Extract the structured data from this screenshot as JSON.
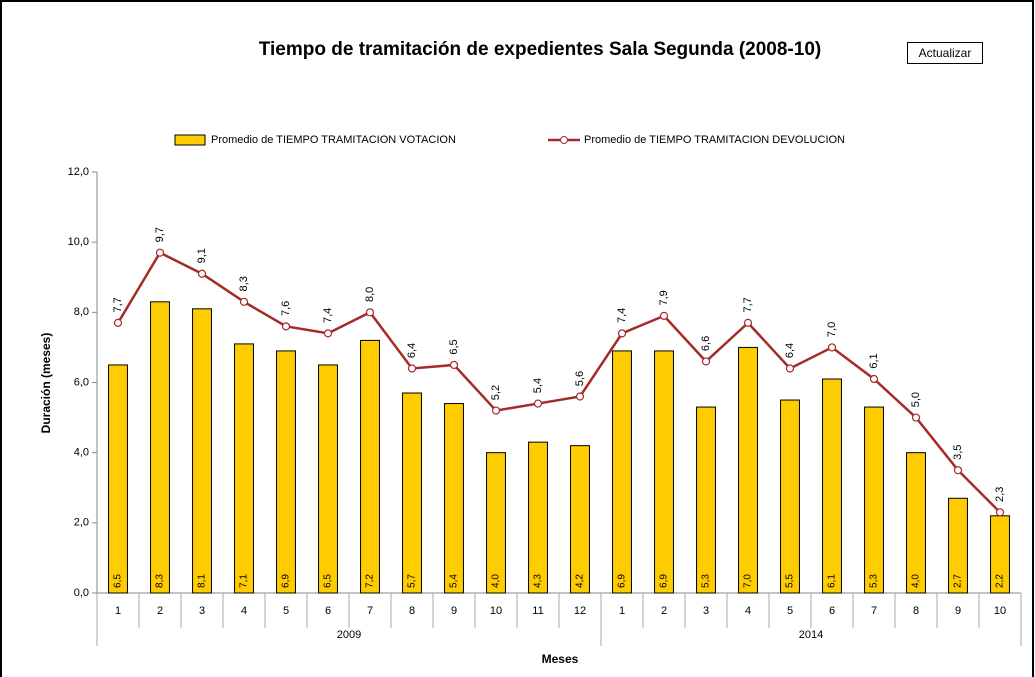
{
  "button": "Actualizar",
  "chart_data": {
    "type": "bar-line",
    "title": "Tiempo de tramitación de expedientes Sala Segunda (2008-10)",
    "y_label": "Duración (meses)",
    "x_label": "Meses",
    "groups": [
      {
        "name": "2009",
        "categories": [
          "1",
          "2",
          "3",
          "4",
          "5",
          "6",
          "7",
          "8",
          "9",
          "10",
          "11",
          "12"
        ]
      },
      {
        "name": "2014",
        "categories": [
          "1",
          "2",
          "3",
          "4",
          "5",
          "6",
          "7",
          "8",
          "9",
          "10"
        ]
      }
    ],
    "ylim": [
      0,
      12
    ],
    "yticks": [
      {
        "value": 0,
        "label": "0,0"
      },
      {
        "value": 2,
        "label": "2,0"
      },
      {
        "value": 4,
        "label": "4,0"
      },
      {
        "value": 6,
        "label": "6,0"
      },
      {
        "value": 8,
        "label": "8,0"
      },
      {
        "value": 10,
        "label": "10,0"
      },
      {
        "value": 12,
        "label": "12,0"
      }
    ],
    "legend": "top",
    "series": [
      {
        "name": "Promedio de TIEMPO TRAMITACION VOTACION",
        "type": "bar",
        "color": "#ffcc00",
        "values": [
          6.5,
          8.3,
          8.1,
          7.1,
          6.9,
          6.5,
          7.2,
          5.7,
          5.4,
          4.0,
          4.3,
          4.2,
          6.9,
          6.9,
          5.3,
          7.0,
          5.5,
          6.1,
          5.3,
          4.0,
          2.7,
          2.2
        ],
        "value_labels": [
          "6,5",
          "8,3",
          "8,1",
          "7,1",
          "6,9",
          "6,5",
          "7,2",
          "5,7",
          "5,4",
          "4,0",
          "4,3",
          "4,2",
          "6,9",
          "6,9",
          "5,3",
          "7,0",
          "5,5",
          "6,1",
          "5,3",
          "4,0",
          "2,7",
          "2,2"
        ]
      },
      {
        "name": "Promedio de TIEMPO TRAMITACION DEVOLUCION",
        "type": "line",
        "color": "#a52a2a",
        "values": [
          7.7,
          9.7,
          9.1,
          8.3,
          7.6,
          7.4,
          8.0,
          6.4,
          6.5,
          5.2,
          5.4,
          5.6,
          7.4,
          7.9,
          6.6,
          7.7,
          6.4,
          7.0,
          6.1,
          5.0,
          3.5,
          2.3
        ],
        "value_labels": [
          "7,7",
          "9,7",
          "9,1",
          "8,3",
          "7,6",
          "7,4",
          "8,0",
          "6,4",
          "6,5",
          "5,2",
          "5,4",
          "5,6",
          "7,4",
          "7,9",
          "6,6",
          "7,7",
          "6,4",
          "7,0",
          "6,1",
          "5,0",
          "3,5",
          "2,3"
        ]
      }
    ]
  }
}
